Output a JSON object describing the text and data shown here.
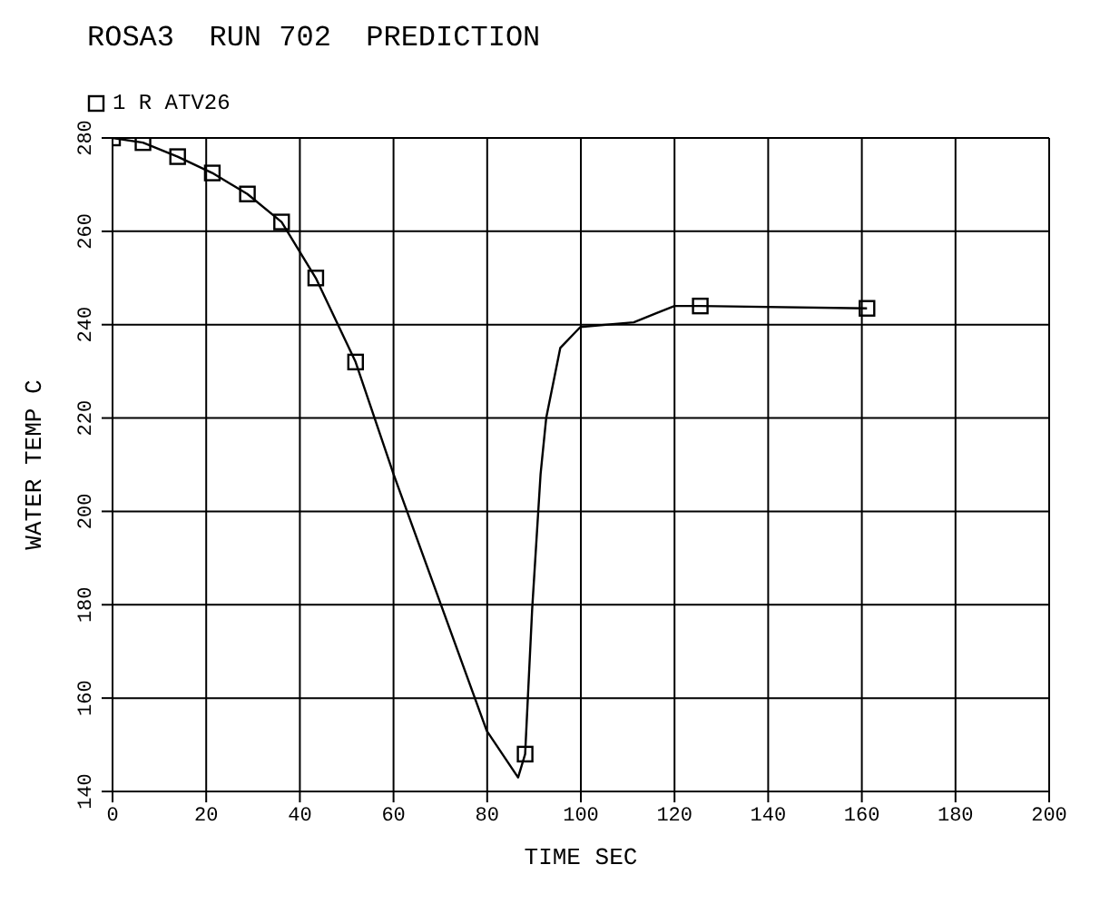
{
  "chart_data": {
    "type": "line",
    "title": "ROSA3  RUN 702  PREDICTION",
    "xlabel": "TIME  SEC",
    "ylabel": "WATER TEMP  C",
    "xlim": [
      0,
      200
    ],
    "xticks": [
      0,
      20,
      40,
      60,
      80,
      100,
      120,
      140,
      160,
      180,
      200
    ],
    "ylim": [
      140,
      280
    ],
    "yticks": [
      140,
      160,
      180,
      200,
      220,
      240,
      260,
      280
    ],
    "grid": true,
    "legend": "top left",
    "series": [
      {
        "color": "#000000",
        "marker": "none",
        "x": [
          0,
          6.5,
          13.9,
          21.3,
          28.8,
          36.1,
          43.4,
          51.9,
          60,
          79.9,
          86.6,
          88.1,
          89.6,
          91.4,
          92.6,
          95.6,
          99.9,
          111.3,
          116.2,
          120,
          125.5,
          161.1
        ],
        "values": [
          280,
          279,
          276,
          272.5,
          268,
          262,
          250,
          232,
          208,
          153,
          143,
          148,
          179,
          208,
          220,
          235,
          239.5,
          240.5,
          242.5,
          244,
          244,
          243.5
        ]
      },
      {
        "type": "scatter",
        "name": "1 R ATV26",
        "color": "#000000",
        "marker": "square",
        "x": [
          0,
          6.5,
          13.9,
          21.3,
          28.8,
          36.1,
          43.4,
          51.9,
          88.1,
          125.5,
          161.1
        ],
        "values": [
          280,
          279,
          276,
          272.5,
          268,
          262,
          250,
          232,
          148,
          244,
          243.5
        ]
      }
    ]
  }
}
